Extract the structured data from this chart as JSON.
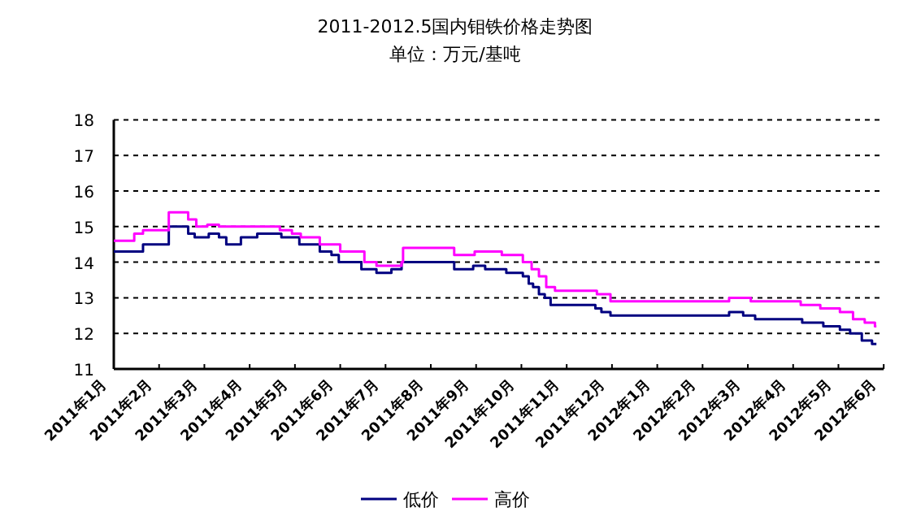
{
  "chart_data": {
    "type": "step",
    "title": "2011-2012.5国内钼铁价格走势图",
    "subtitle": "单位：万元/基吨",
    "xlim": [
      "2011-01",
      "2012-06"
    ],
    "xticks": [
      {
        "value": "2011-01",
        "label": "2011年1月"
      },
      {
        "value": "2011-02",
        "label": "2011年2月"
      },
      {
        "value": "2011-03",
        "label": "2011年3月"
      },
      {
        "value": "2011-04",
        "label": "2011年4月"
      },
      {
        "value": "2011-05",
        "label": "2011年5月"
      },
      {
        "value": "2011-06",
        "label": "2011年6月"
      },
      {
        "value": "2011-07",
        "label": "2011年7月"
      },
      {
        "value": "2011-08",
        "label": "2011年8月"
      },
      {
        "value": "2011-09",
        "label": "2011年9月"
      },
      {
        "value": "2011-10",
        "label": "2011年10月"
      },
      {
        "value": "2011-11",
        "label": "2011年11月"
      },
      {
        "value": "2011-12",
        "label": "2011年12月"
      },
      {
        "value": "2012-01",
        "label": "2012年1月"
      },
      {
        "value": "2012-02",
        "label": "2012年2月"
      },
      {
        "value": "2012-03",
        "label": "2012年3月"
      },
      {
        "value": "2012-04",
        "label": "2012年4月"
      },
      {
        "value": "2012-05",
        "label": "2012年5月"
      },
      {
        "value": "2012-06",
        "label": "2012年6月"
      }
    ],
    "ylim": [
      11,
      18
    ],
    "yticks": [
      11,
      12,
      13,
      14,
      15,
      16,
      17,
      18
    ],
    "grid": "y",
    "legend": "bottom",
    "series": [
      {
        "name": "低价",
        "color": "#000080",
        "x": [
          "2011-01-01",
          "2011-01-21",
          "2011-02-07",
          "2011-02-19",
          "2011-02-23",
          "2011-03-04",
          "2011-03-11",
          "2011-03-16",
          "2011-03-26",
          "2011-04-06",
          "2011-04-22",
          "2011-05-04",
          "2011-05-18",
          "2011-05-26",
          "2011-05-31",
          "2011-06-15",
          "2011-06-25",
          "2011-07-05",
          "2011-07-12",
          "2011-08-17",
          "2011-08-30",
          "2011-09-07",
          "2011-09-21",
          "2011-10-02",
          "2011-10-06",
          "2011-10-09",
          "2011-10-13",
          "2011-10-17",
          "2011-10-21",
          "2011-11-20",
          "2011-11-24",
          "2011-11-30",
          "2012-02-18",
          "2012-02-27",
          "2012-03-06",
          "2012-04-07",
          "2012-04-21",
          "2012-05-02",
          "2012-05-09",
          "2012-05-17",
          "2012-05-24",
          "2012-05-27"
        ],
        "values": [
          14.3,
          14.5,
          15.0,
          14.8,
          14.7,
          14.8,
          14.7,
          14.5,
          14.7,
          14.8,
          14.7,
          14.5,
          14.3,
          14.2,
          14.0,
          13.8,
          13.7,
          13.8,
          14.0,
          13.8,
          13.9,
          13.8,
          13.7,
          13.6,
          13.4,
          13.3,
          13.1,
          13.0,
          12.8,
          12.7,
          12.6,
          12.5,
          12.6,
          12.5,
          12.4,
          12.3,
          12.2,
          12.1,
          12.0,
          11.8,
          11.7,
          11.7
        ]
      },
      {
        "name": "高价",
        "color": "#ff00ff",
        "x": [
          "2011-01-01",
          "2011-01-15",
          "2011-01-21",
          "2011-02-07",
          "2011-02-19",
          "2011-02-24",
          "2011-03-03",
          "2011-03-11",
          "2011-04-21",
          "2011-04-29",
          "2011-05-05",
          "2011-05-18",
          "2011-06-01",
          "2011-06-17",
          "2011-06-25",
          "2011-07-12",
          "2011-07-13",
          "2011-08-17",
          "2011-08-31",
          "2011-09-18",
          "2011-10-02",
          "2011-10-08",
          "2011-10-13",
          "2011-10-18",
          "2011-10-24",
          "2011-11-21",
          "2011-11-30",
          "2012-02-18",
          "2012-03-03",
          "2012-04-06",
          "2012-04-19",
          "2012-05-02",
          "2012-05-11",
          "2012-05-19",
          "2012-05-26",
          "2012-05-27"
        ],
        "values": [
          14.6,
          14.8,
          14.9,
          15.4,
          15.2,
          15.0,
          15.05,
          15.0,
          14.9,
          14.8,
          14.7,
          14.5,
          14.3,
          14.0,
          13.9,
          14.0,
          14.4,
          14.2,
          14.3,
          14.2,
          14.0,
          13.8,
          13.6,
          13.3,
          13.2,
          13.1,
          12.9,
          13.0,
          12.9,
          12.8,
          12.7,
          12.6,
          12.4,
          12.3,
          12.2,
          12.2
        ]
      }
    ]
  }
}
